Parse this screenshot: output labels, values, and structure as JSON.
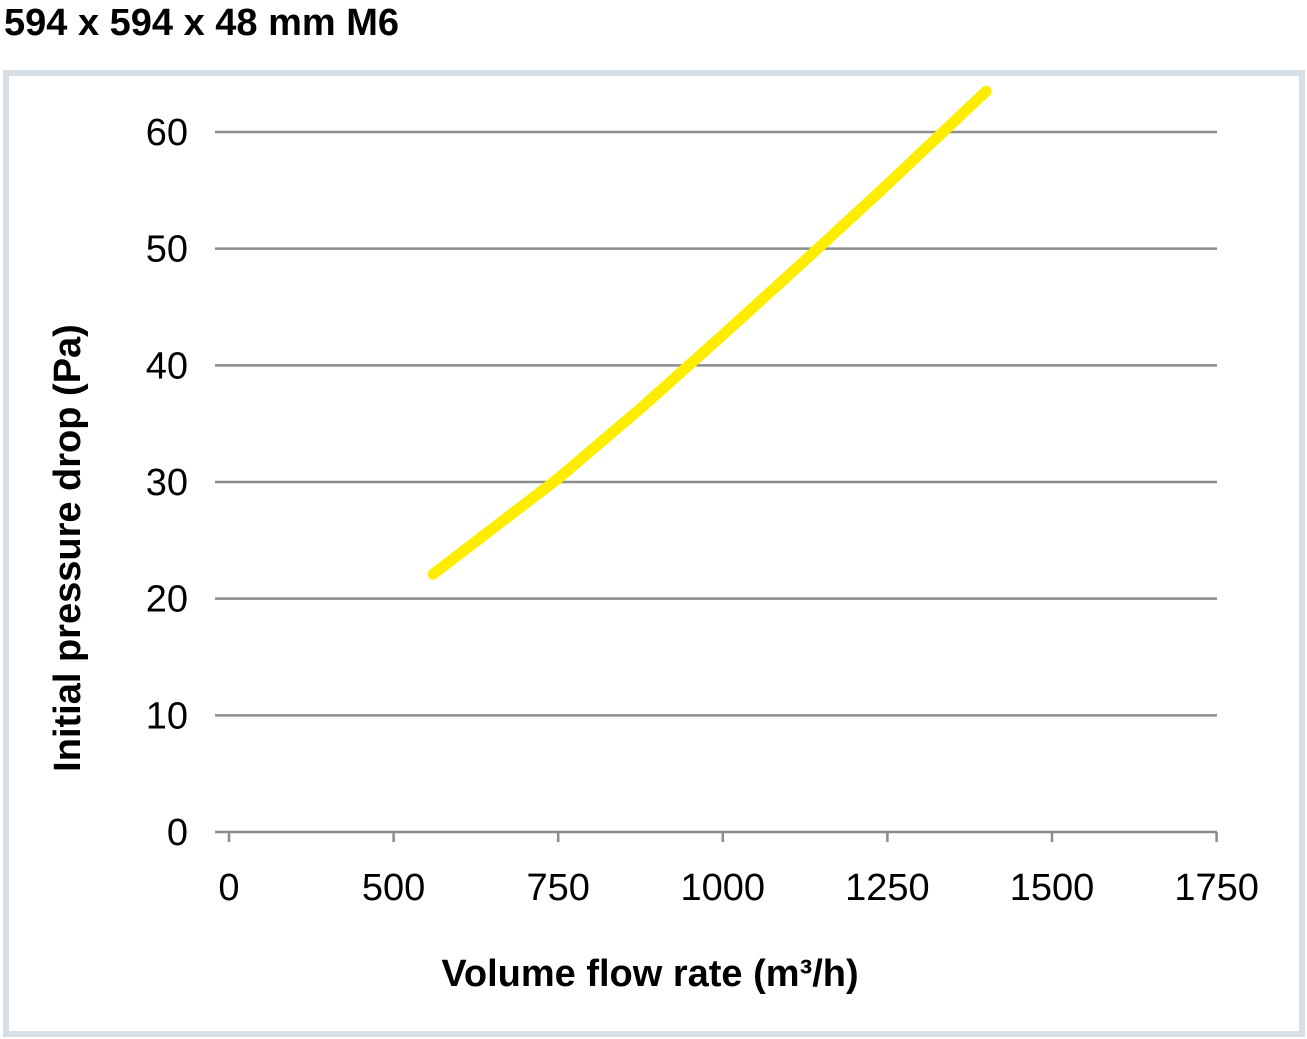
{
  "chart_data": {
    "type": "line",
    "title": "594 x 594 x 48 mm M6",
    "xlabel": "Volume flow rate (m³/h)",
    "ylabel": "Initial pressure drop (Pa)",
    "x_ticks": [
      0,
      500,
      750,
      1000,
      1250,
      1500,
      1750
    ],
    "y_ticks": [
      0,
      10,
      20,
      30,
      40,
      50,
      60
    ],
    "ylim": [
      0,
      60
    ],
    "grid": true,
    "line_color": "#ffed00",
    "grid_color": "#8c8c8c",
    "series": [
      {
        "name": "594 x 594 x 48 mm M6",
        "x": [
          560,
          650,
          750,
          875,
          1000,
          1125,
          1250,
          1400
        ],
        "y": [
          22.1,
          26.0,
          30.3,
          36.3,
          42.6,
          49.0,
          55.5,
          63.5
        ]
      }
    ]
  }
}
